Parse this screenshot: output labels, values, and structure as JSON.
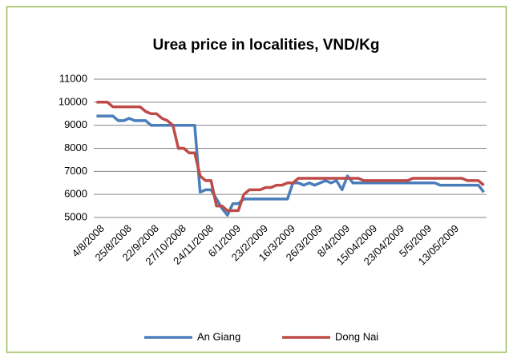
{
  "chart_data": {
    "type": "line",
    "title": "Urea price in localities, VND/Kg",
    "categories": [
      "4/8/2008",
      null,
      null,
      null,
      null,
      "25/8/2008",
      null,
      null,
      null,
      null,
      "22/9/2008",
      null,
      null,
      null,
      null,
      "27/10/2008",
      null,
      null,
      null,
      null,
      "24/11/2008",
      null,
      null,
      null,
      null,
      "6/1/2009",
      null,
      null,
      null,
      null,
      "23/2/2009",
      null,
      null,
      null,
      null,
      "16/3/2009",
      null,
      null,
      null,
      null,
      "26/3/2009",
      null,
      null,
      null,
      null,
      "8/4/2009",
      null,
      null,
      null,
      null,
      "15/04/2009",
      null,
      null,
      null,
      null,
      "23/04/2009",
      null,
      null,
      null,
      null,
      "5/5/2009",
      null,
      null,
      null,
      null,
      "13/05/2009",
      null,
      null,
      null,
      null,
      null,
      null
    ],
    "series": [
      {
        "name": "An Giang",
        "color": "#4a7ebb",
        "values": [
          9400,
          9400,
          9400,
          9400,
          9200,
          9200,
          9300,
          9200,
          9200,
          9200,
          9000,
          9000,
          9000,
          9000,
          9000,
          9000,
          9000,
          9000,
          9000,
          6100,
          6200,
          6200,
          5800,
          5400,
          5100,
          5600,
          5600,
          5800,
          5800,
          5800,
          5800,
          5800,
          5800,
          5800,
          5800,
          5800,
          6500,
          6500,
          6400,
          6500,
          6400,
          6500,
          6600,
          6500,
          6600,
          6200,
          6800,
          6500,
          6500,
          6500,
          6500,
          6500,
          6500,
          6500,
          6500,
          6500,
          6500,
          6500,
          6500,
          6500,
          6500,
          6500,
          6500,
          6400,
          6400,
          6400,
          6400,
          6400,
          6400,
          6400,
          6400,
          6100
        ]
      },
      {
        "name": "Dong Nai",
        "color": "#be4b48",
        "values": [
          10000,
          10000,
          10000,
          9800,
          9800,
          9800,
          9800,
          9800,
          9800,
          9600,
          9500,
          9500,
          9300,
          9200,
          9000,
          8000,
          8000,
          7800,
          7800,
          6800,
          6600,
          6600,
          5500,
          5500,
          5300,
          5300,
          5300,
          6000,
          6200,
          6200,
          6200,
          6300,
          6300,
          6400,
          6400,
          6500,
          6500,
          6700,
          6700,
          6700,
          6700,
          6700,
          6700,
          6700,
          6700,
          6700,
          6700,
          6700,
          6700,
          6600,
          6600,
          6600,
          6600,
          6600,
          6600,
          6600,
          6600,
          6600,
          6700,
          6700,
          6700,
          6700,
          6700,
          6700,
          6700,
          6700,
          6700,
          6700,
          6600,
          6600,
          6600,
          6400
        ]
      }
    ],
    "ylim": [
      5000,
      11000
    ],
    "yticks": [
      5000,
      6000,
      7000,
      8000,
      9000,
      10000,
      11000
    ],
    "grid": true
  }
}
